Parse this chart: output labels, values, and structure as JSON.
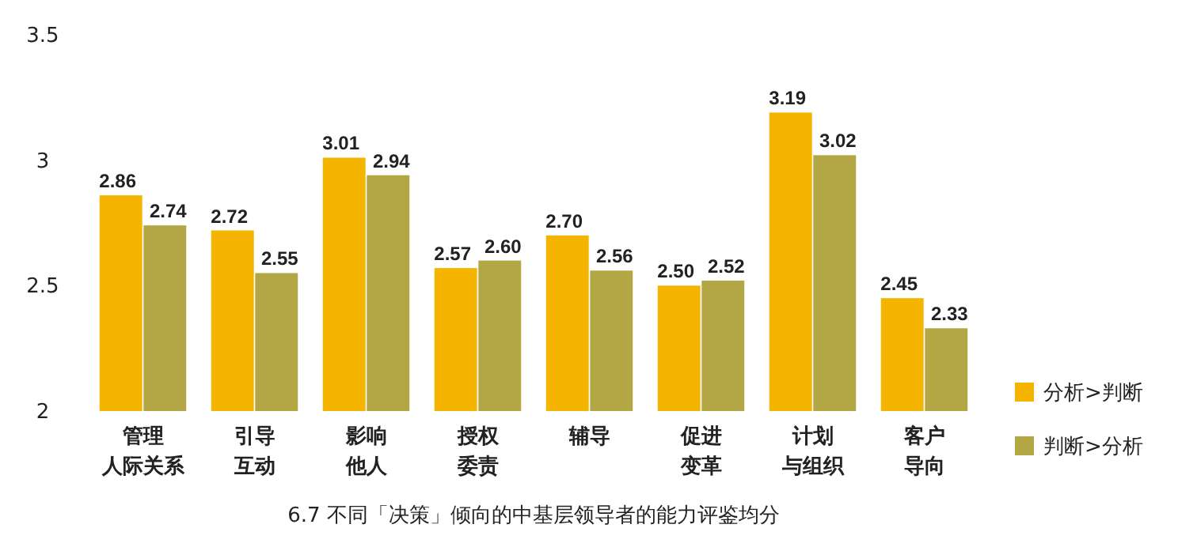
{
  "chart_data": {
    "type": "bar",
    "title": "6.7 不同「决策」倾向的中基层领导者的能力评鉴均分",
    "categories": [
      "管理人际关系",
      "引导互动",
      "影响他人",
      "授权委责",
      "辅导",
      "促进变革",
      "计划与组织",
      "客户导向"
    ],
    "series": [
      {
        "name": "分析>判断",
        "color": "#f5b400",
        "values": [
          2.86,
          2.72,
          3.01,
          2.57,
          2.7,
          2.5,
          3.19,
          2.45
        ],
        "value_labels": [
          "2.86",
          "2.72",
          "3.01",
          "2.57",
          "2.70",
          "2.50",
          "3.19",
          "2.45"
        ]
      },
      {
        "name": "判断>分析",
        "color": "#b3a745",
        "values": [
          2.74,
          2.55,
          2.94,
          2.6,
          2.56,
          2.52,
          3.02,
          2.33
        ],
        "value_labels": [
          "2.74",
          "2.55",
          "2.94",
          "2.60",
          "2.56",
          "2.52",
          "3.02",
          "2.33"
        ]
      }
    ],
    "ylim": [
      2,
      3.5
    ],
    "yticks": [
      2,
      2.5,
      3,
      3.5
    ],
    "grid": false,
    "legend": "bottom right"
  }
}
